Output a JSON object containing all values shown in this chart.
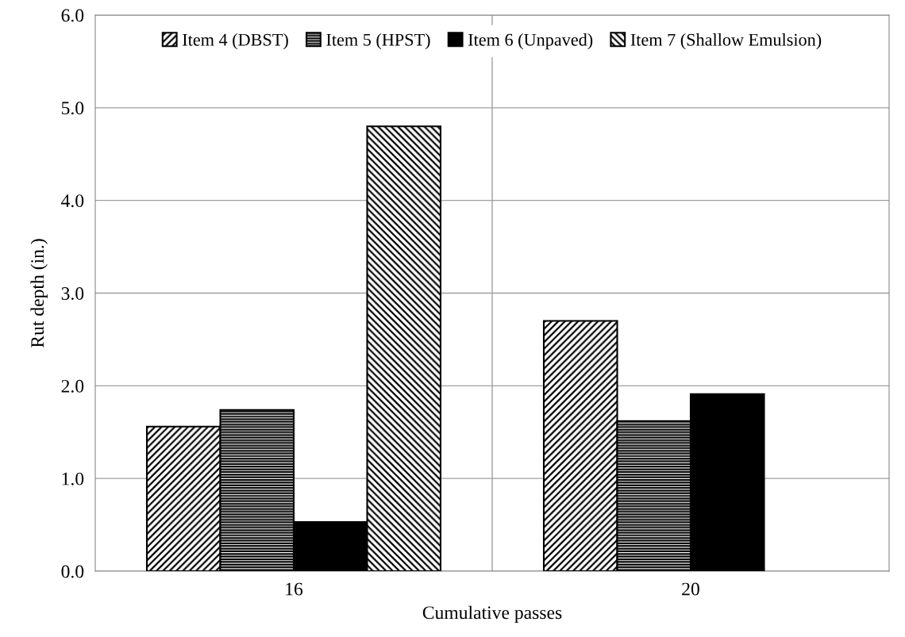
{
  "chart_data": {
    "type": "bar",
    "xlabel": "Cumulative passes",
    "ylabel": "Rut depth (in.)",
    "categories": [
      "16",
      "20"
    ],
    "series": [
      {
        "name": "Item 4 (DBST)",
        "color": "#000000",
        "values": [
          1.56,
          2.7
        ]
      },
      {
        "name": "Item 5 (HPST)",
        "color": "#000000",
        "values": [
          1.74,
          1.62
        ]
      },
      {
        "name": "Item 6 (Unpaved)",
        "color": "#000000",
        "values": [
          0.53,
          1.91
        ]
      },
      {
        "name": "Item 7 (Shallow Emulsion)",
        "color": "#000000",
        "values": [
          4.8,
          null
        ]
      }
    ],
    "ylim": [
      0,
      6
    ],
    "yticks": [
      {
        "value": 0,
        "label": "0.0"
      },
      {
        "value": 1,
        "label": "1.0"
      },
      {
        "value": 2,
        "label": "2.0"
      },
      {
        "value": 3,
        "label": "3.0"
      },
      {
        "value": 4,
        "label": "4.0"
      },
      {
        "value": 5,
        "label": "5.0"
      },
      {
        "value": 6,
        "label": "6.0"
      }
    ],
    "grid": true,
    "legend": "top"
  }
}
